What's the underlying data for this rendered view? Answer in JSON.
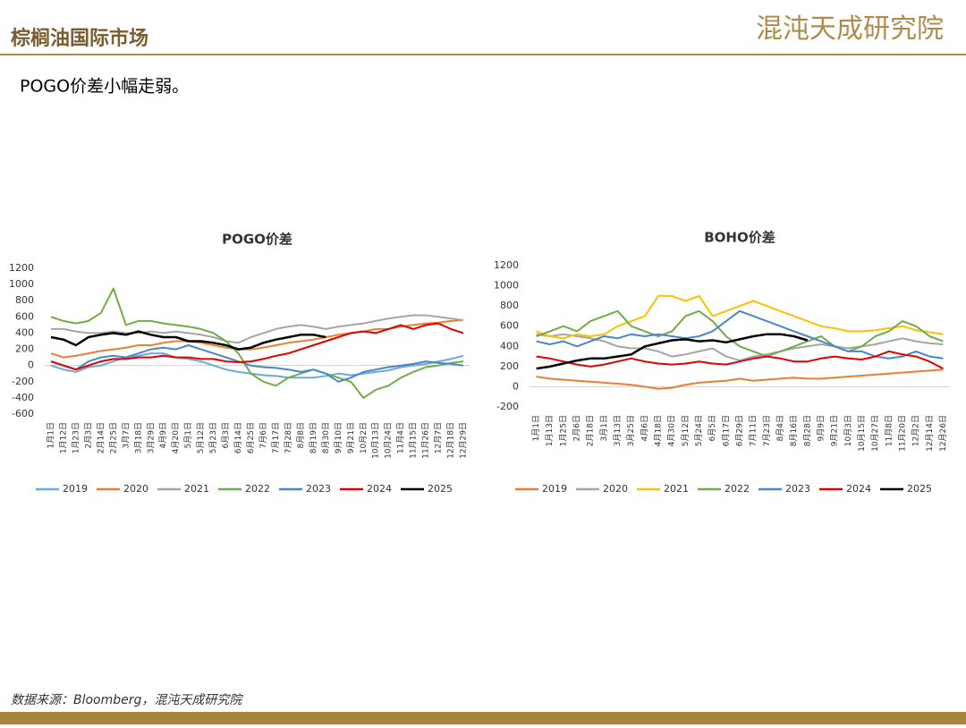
{
  "header": {
    "title": "棕榈油国际市场",
    "logo": "混沌天成研究院"
  },
  "subtitle": "POGO价差小幅走弱。",
  "source": "数据来源：Bloomberg，混沌天成研究院",
  "chart_data": [
    {
      "type": "line",
      "title": "POGO价差",
      "categories": [
        "1月1日",
        "1月12日",
        "1月23日",
        "2月3日",
        "2月14日",
        "2月25日",
        "3月7日",
        "3月18日",
        "3月29日",
        "4月9日",
        "4月20日",
        "5月1日",
        "5月12日",
        "5月23日",
        "6月3日",
        "6月14日",
        "6月25日",
        "7月6日",
        "7月17日",
        "7月28日",
        "8月8日",
        "8月19日",
        "8月30日",
        "9月10日",
        "9月21日",
        "10月2日",
        "10月13日",
        "10月24日",
        "11月4日",
        "11月15日",
        "11月26日",
        "12月7日",
        "12月18日",
        "12月29日"
      ],
      "ylim": [
        -600,
        1200
      ],
      "yticks": [
        -600,
        -400,
        -200,
        0,
        200,
        400,
        600,
        800,
        1000,
        1200
      ],
      "series": [
        {
          "name": "2019",
          "color": "#6fa8dc",
          "values": [
            0,
            -50,
            -80,
            -20,
            0,
            50,
            100,
            120,
            150,
            150,
            100,
            80,
            50,
            0,
            -50,
            -80,
            -100,
            -120,
            -130,
            -150,
            -150,
            -150,
            -130,
            -100,
            -120,
            -100,
            -80,
            -60,
            -20,
            0,
            20,
            50,
            80,
            120
          ]
        },
        {
          "name": "2020",
          "color": "#ed7d31",
          "values": [
            150,
            100,
            120,
            150,
            180,
            200,
            220,
            250,
            250,
            280,
            300,
            300,
            280,
            250,
            220,
            200,
            200,
            220,
            250,
            280,
            300,
            320,
            350,
            380,
            400,
            420,
            450,
            450,
            480,
            500,
            520,
            530,
            550,
            560
          ]
        },
        {
          "name": "2021",
          "color": "#a5a5a5",
          "values": [
            450,
            450,
            420,
            400,
            400,
            420,
            400,
            400,
            420,
            400,
            420,
            400,
            380,
            350,
            300,
            280,
            350,
            400,
            450,
            480,
            500,
            480,
            450,
            480,
            500,
            520,
            550,
            580,
            600,
            620,
            620,
            600,
            580,
            560
          ]
        },
        {
          "name": "2022",
          "color": "#70ad47",
          "values": [
            600,
            550,
            520,
            550,
            650,
            950,
            500,
            550,
            550,
            520,
            500,
            480,
            450,
            400,
            300,
            150,
            -100,
            -200,
            -250,
            -150,
            -100,
            -50,
            -100,
            -150,
            -200,
            -400,
            -300,
            -250,
            -150,
            -80,
            -20,
            0,
            30,
            50
          ]
        },
        {
          "name": "2023",
          "color": "#4a86c8",
          "values": [
            50,
            0,
            -50,
            50,
            100,
            120,
            100,
            150,
            200,
            220,
            200,
            250,
            200,
            150,
            100,
            50,
            0,
            -20,
            -30,
            -50,
            -80,
            -50,
            -100,
            -200,
            -150,
            -80,
            -50,
            -20,
            0,
            20,
            50,
            30,
            20,
            0
          ]
        },
        {
          "name": "2024",
          "color": "#e00000",
          "values": [
            50,
            0,
            -50,
            0,
            50,
            80,
            80,
            100,
            100,
            120,
            100,
            100,
            80,
            80,
            50,
            40,
            50,
            80,
            120,
            150,
            200,
            250,
            300,
            350,
            400,
            420,
            400,
            450,
            500,
            450,
            500,
            520,
            450,
            400
          ]
        },
        {
          "name": "2025",
          "color": "#000000",
          "values": [
            350,
            320,
            250,
            350,
            380,
            400,
            380,
            420,
            380,
            350,
            350,
            300,
            300,
            280,
            250,
            200,
            220,
            280,
            320,
            350,
            380,
            380,
            350,
            null,
            null,
            null,
            null,
            null,
            null,
            null,
            null,
            null,
            null,
            null
          ]
        }
      ]
    },
    {
      "type": "line",
      "title": "BOHO价差",
      "categories": [
        "1月1日",
        "1月13日",
        "1月25日",
        "2月6日",
        "2月18日",
        "3月1日",
        "3月13日",
        "3月25日",
        "4月6日",
        "4月18日",
        "4月30日",
        "5月12日",
        "5月24日",
        "6月5日",
        "6月17日",
        "6月29日",
        "7月11日",
        "7月23日",
        "8月4日",
        "8月16日",
        "8月28日",
        "9月9日",
        "9月21日",
        "10月3日",
        "10月15日",
        "10月27日",
        "11月8日",
        "11月20日",
        "12月2日",
        "12月14日",
        "12月26日"
      ],
      "ylim": [
        -200,
        1200
      ],
      "yticks": [
        -200,
        0,
        200,
        400,
        600,
        800,
        1000,
        1200
      ],
      "series": [
        {
          "name": "2019",
          "color": "#ed7d31",
          "values": [
            100,
            80,
            70,
            60,
            50,
            40,
            30,
            20,
            0,
            -20,
            -10,
            20,
            40,
            50,
            60,
            80,
            60,
            70,
            80,
            90,
            80,
            80,
            90,
            100,
            110,
            120,
            130,
            140,
            150,
            160,
            170
          ]
        },
        {
          "name": "2020",
          "color": "#a5a5a5",
          "values": [
            520,
            500,
            520,
            500,
            480,
            450,
            400,
            380,
            380,
            350,
            300,
            320,
            350,
            380,
            300,
            260,
            300,
            320,
            350,
            380,
            400,
            420,
            400,
            380,
            400,
            420,
            450,
            480,
            450,
            430,
            420
          ]
        },
        {
          "name": "2021",
          "color": "#ffc000",
          "values": [
            550,
            500,
            480,
            520,
            500,
            520,
            600,
            650,
            700,
            900,
            900,
            850,
            900,
            700,
            750,
            800,
            850,
            800,
            750,
            700,
            650,
            600,
            580,
            550,
            550,
            560,
            580,
            600,
            560,
            540,
            520
          ]
        },
        {
          "name": "2022",
          "color": "#70ad47",
          "values": [
            500,
            550,
            600,
            550,
            650,
            700,
            750,
            600,
            550,
            500,
            550,
            700,
            750,
            650,
            500,
            400,
            350,
            300,
            350,
            400,
            450,
            500,
            400,
            350,
            400,
            500,
            550,
            650,
            600,
            500,
            450
          ]
        },
        {
          "name": "2023",
          "color": "#4a86c8",
          "values": [
            450,
            420,
            450,
            400,
            450,
            500,
            480,
            520,
            500,
            520,
            500,
            480,
            500,
            550,
            650,
            750,
            700,
            650,
            600,
            550,
            500,
            450,
            400,
            350,
            350,
            300,
            280,
            300,
            350,
            300,
            280
          ]
        },
        {
          "name": "2024",
          "color": "#e00000",
          "values": [
            300,
            280,
            250,
            220,
            200,
            220,
            250,
            280,
            250,
            230,
            220,
            230,
            250,
            230,
            220,
            250,
            280,
            300,
            280,
            250,
            250,
            280,
            300,
            280,
            270,
            300,
            350,
            320,
            300,
            250,
            180
          ]
        },
        {
          "name": "2025",
          "color": "#000000",
          "values": [
            180,
            200,
            230,
            260,
            280,
            280,
            300,
            320,
            400,
            430,
            460,
            470,
            450,
            460,
            440,
            470,
            500,
            520,
            520,
            500,
            460,
            null,
            null,
            null,
            null,
            null,
            null,
            null,
            null,
            null,
            null
          ]
        }
      ]
    }
  ]
}
